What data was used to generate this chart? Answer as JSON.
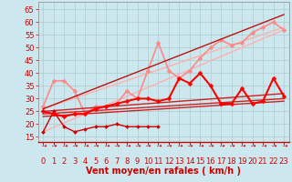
{
  "title": "",
  "xlabel": "Vent moyen/en rafales ( km/h )",
  "ylabel": "",
  "background_color": "#cce8ee",
  "grid_color": "#aacccc",
  "x_labels": [
    "0",
    "1",
    "2",
    "3",
    "4",
    "5",
    "6",
    "7",
    "8",
    "9",
    "10",
    "11",
    "12",
    "13",
    "14",
    "15",
    "16",
    "17",
    "18",
    "19",
    "20",
    "21",
    "22",
    "23"
  ],
  "y_ticks": [
    15,
    20,
    25,
    30,
    35,
    40,
    45,
    50,
    55,
    60,
    65
  ],
  "ylim": [
    13,
    68
  ],
  "xlim": [
    -0.5,
    23.5
  ],
  "lines": [
    {
      "name": "line_light_upper1",
      "color": "#ffb0b0",
      "linewidth": 1.0,
      "marker": null,
      "data_x": [
        0,
        23
      ],
      "data_y": [
        26,
        58
      ]
    },
    {
      "name": "line_light_upper2",
      "color": "#ffb0b0",
      "linewidth": 1.0,
      "marker": null,
      "data_x": [
        0,
        23
      ],
      "data_y": [
        17,
        57
      ]
    },
    {
      "name": "line_pink_wavy",
      "color": "#ff8888",
      "linewidth": 1.2,
      "marker": "D",
      "markersize": 2.5,
      "data_x": [
        0,
        1,
        2,
        3,
        4,
        5,
        6,
        7,
        8,
        9,
        10,
        11,
        12,
        13,
        14,
        15,
        16,
        17,
        18,
        19,
        20,
        21,
        22,
        23
      ],
      "data_y": [
        27,
        37,
        37,
        33,
        24,
        27,
        27,
        28,
        33,
        30,
        41,
        52,
        41,
        38,
        41,
        46,
        50,
        53,
        51,
        52,
        56,
        58,
        60,
        57
      ]
    },
    {
      "name": "line_red_straight1",
      "color": "#cc2222",
      "linewidth": 1.0,
      "marker": null,
      "data_x": [
        0,
        23
      ],
      "data_y": [
        25,
        32
      ]
    },
    {
      "name": "line_red_straight2",
      "color": "#cc2222",
      "linewidth": 1.0,
      "marker": null,
      "data_x": [
        0,
        23
      ],
      "data_y": [
        24,
        30
      ]
    },
    {
      "name": "line_red_straight3",
      "color": "#cc2222",
      "linewidth": 1.0,
      "marker": null,
      "data_x": [
        0,
        23
      ],
      "data_y": [
        23,
        29
      ]
    },
    {
      "name": "line_red_straight4",
      "color": "#bb1111",
      "linewidth": 1.0,
      "marker": null,
      "data_x": [
        0,
        23
      ],
      "data_y": [
        26,
        63
      ]
    },
    {
      "name": "line_low_dotted",
      "color": "#cc0000",
      "linewidth": 1.0,
      "marker": "D",
      "markersize": 2.0,
      "data_x": [
        0,
        1,
        2,
        3,
        4,
        5,
        6,
        7,
        8,
        9,
        10,
        11
      ],
      "data_y": [
        17,
        25,
        19,
        17,
        18,
        19,
        19,
        20,
        19,
        19,
        19,
        19
      ]
    },
    {
      "name": "line_red_main",
      "color": "#ff0000",
      "linewidth": 1.5,
      "marker": "D",
      "markersize": 2.5,
      "data_x": [
        0,
        1,
        2,
        3,
        4,
        5,
        6,
        7,
        8,
        9,
        10,
        11,
        12,
        13,
        14,
        15,
        16,
        17,
        18,
        19,
        20,
        21,
        22,
        23
      ],
      "data_y": [
        25,
        24,
        23,
        24,
        24,
        26,
        27,
        28,
        29,
        30,
        30,
        29,
        30,
        38,
        36,
        40,
        35,
        28,
        28,
        34,
        28,
        29,
        38,
        31
      ]
    }
  ],
  "arrow_color": "#cc0000",
  "xlabel_color": "#cc0000",
  "xlabel_fontsize": 7,
  "tick_color": "#cc0000",
  "tick_fontsize": 6,
  "ytick_fontsize": 6
}
